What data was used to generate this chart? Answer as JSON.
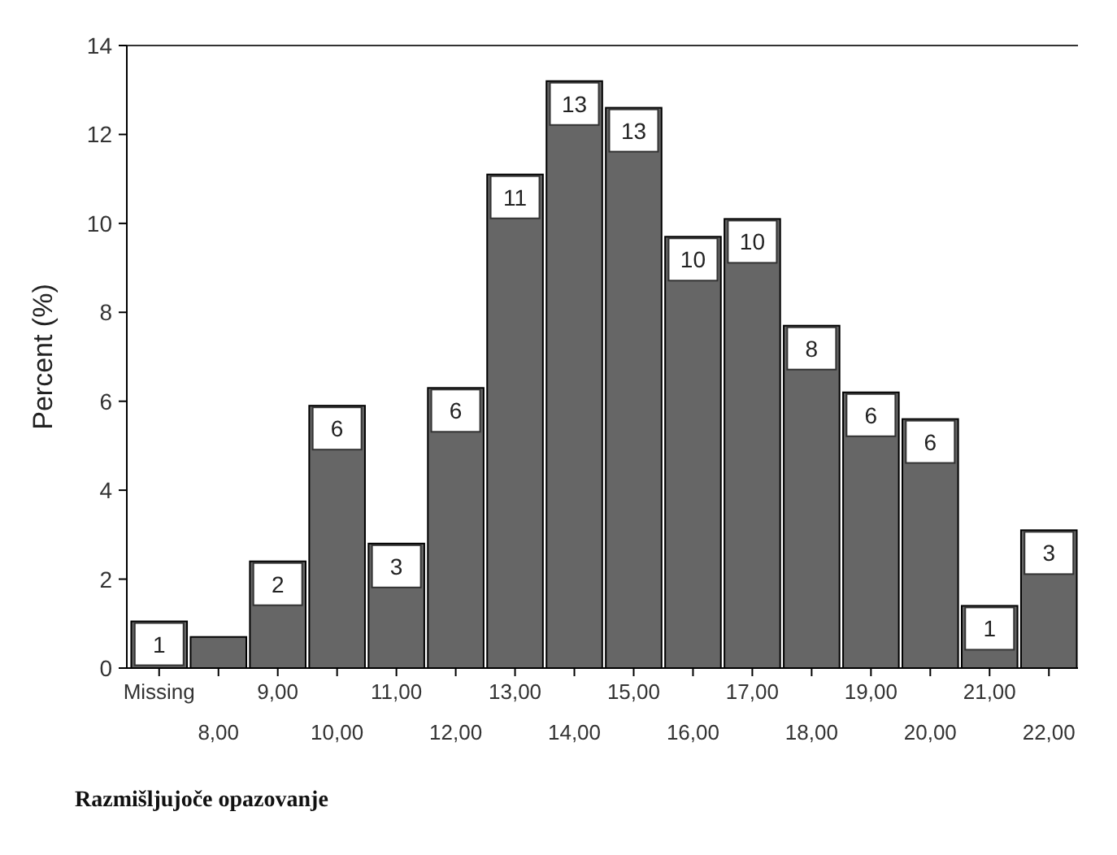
{
  "chart_data": {
    "type": "bar",
    "xlabel": "Razmišljujoče opazovanje",
    "ylabel": "Percent (%)",
    "categories": [
      "Missing",
      "8,00",
      "9,00",
      "10,00",
      "11,00",
      "12,00",
      "13,00",
      "14,00",
      "15,00",
      "16,00",
      "17,00",
      "18,00",
      "19,00",
      "20,00",
      "21,00",
      "22,00"
    ],
    "values": [
      1.05,
      0.7,
      2.4,
      5.9,
      2.8,
      6.3,
      11.1,
      13.2,
      12.6,
      9.7,
      10.1,
      7.7,
      6.2,
      5.6,
      1.4,
      3.1
    ],
    "value_labels": [
      "1",
      null,
      "2",
      "6",
      "3",
      "6",
      "11",
      "13",
      "13",
      "10",
      "10",
      "8",
      "6",
      "6",
      "1",
      "3"
    ],
    "color": "#666666",
    "ylim": [
      0,
      14
    ],
    "yticks": [
      0,
      2,
      4,
      6,
      8,
      10,
      12,
      14
    ],
    "grid": false
  }
}
